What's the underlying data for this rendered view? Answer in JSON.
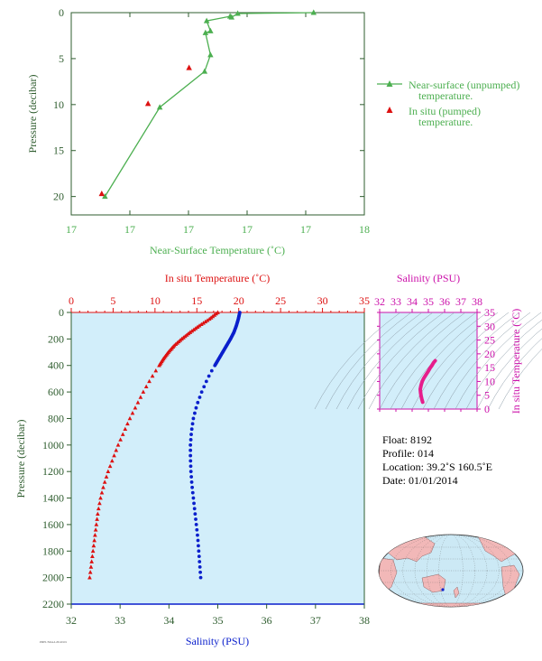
{
  "colors": {
    "green": "#4caf50",
    "axis_green": "#2f5d2f",
    "red": "#dd1111",
    "blue": "#0a1fcc",
    "magenta": "#cc11aa",
    "panel_bg": "#d2eefa",
    "land": "#f2b8b8",
    "ocean": "#cce9f5"
  },
  "chart_data": [
    {
      "type": "line",
      "xlabel": "Near-Surface Temperature (˚C)",
      "ylabel": "Pressure (decibar)",
      "xlim": [
        17,
        18
      ],
      "ylim": [
        22,
        0
      ],
      "x_tick_labels": [
        "17",
        "17",
        "17",
        "17",
        "17",
        "18"
      ],
      "y_ticks": [
        0,
        5,
        10,
        15,
        20
      ],
      "legend_position": "right",
      "series": [
        {
          "name": "Near-surface (unpumped) temperature.",
          "marker": "triangle-line",
          "x": [
            17.827,
            17.568,
            17.547,
            17.542,
            17.462,
            17.475,
            17.458,
            17.475,
            17.455,
            17.302,
            17.115
          ],
          "y": [
            0.0,
            0.1,
            0.5,
            0.4,
            0.9,
            2.0,
            2.2,
            4.6,
            6.4,
            10.3,
            20.0
          ]
        },
        {
          "name": "In situ (pumped) temperature.",
          "marker": "triangle",
          "x": [
            17.402,
            17.262,
            17.104
          ],
          "y": [
            6.0,
            9.9,
            19.7
          ]
        }
      ]
    },
    {
      "type": "scatter",
      "x_top_label": "In situ Temperature (˚C)",
      "x_bottom_label": "Salinity (PSU)",
      "ylabel": "Pressure (decibar)",
      "temp_lim": [
        0,
        35
      ],
      "temp_ticks": [
        0,
        5,
        10,
        15,
        20,
        25,
        30,
        35
      ],
      "sal_lim": [
        32,
        38
      ],
      "sal_ticks": [
        32,
        33,
        34,
        35,
        36,
        37,
        38
      ],
      "ylim": [
        2200,
        0
      ],
      "y_ticks": [
        0,
        200,
        400,
        600,
        800,
        1000,
        1200,
        1400,
        1600,
        1800,
        2000,
        2200
      ],
      "series": [
        {
          "name": "In situ Temperature (˚C)",
          "pressure": [
            0,
            50,
            100,
            150,
            200,
            250,
            300,
            350,
            400,
            500,
            600,
            700,
            800,
            900,
            1000,
            1100,
            1200,
            1300,
            1400,
            1500,
            1600,
            1700,
            1800,
            1900,
            2000
          ],
          "temperature": [
            17.5,
            16.5,
            15.3,
            14.2,
            13.2,
            12.3,
            11.6,
            11.0,
            10.5,
            9.5,
            8.6,
            7.8,
            7.0,
            6.3,
            5.6,
            5.0,
            4.4,
            3.9,
            3.5,
            3.2,
            3.0,
            2.8,
            2.6,
            2.4,
            2.2
          ]
        },
        {
          "name": "Salinity (PSU)",
          "pressure": [
            0,
            50,
            100,
            150,
            200,
            250,
            300,
            350,
            400,
            450,
            500,
            600,
            700,
            800,
            900,
            1000,
            1100,
            1200,
            1300,
            1400,
            1500,
            1600,
            1700,
            1800,
            1900,
            2000
          ],
          "salinity": [
            35.45,
            35.42,
            35.38,
            35.33,
            35.26,
            35.18,
            35.1,
            35.02,
            34.94,
            34.86,
            34.79,
            34.67,
            34.57,
            34.5,
            34.46,
            34.44,
            34.44,
            34.45,
            34.47,
            34.5,
            34.53,
            34.56,
            34.59,
            34.61,
            34.63,
            34.65
          ]
        }
      ]
    },
    {
      "type": "scatter",
      "xlabel": "Salinity (PSU)",
      "ylabel": "In situ Temperature (˚C)",
      "xlim": [
        32,
        38
      ],
      "x_ticks": [
        32,
        33,
        34,
        35,
        36,
        37,
        38
      ],
      "ylim": [
        0,
        35
      ],
      "y_ticks": [
        0,
        5,
        10,
        15,
        20,
        25,
        30,
        35
      ],
      "series": [
        {
          "name": "T-S curve",
          "salinity": [
            34.65,
            34.6,
            34.55,
            34.52,
            34.5,
            34.55,
            34.62,
            34.72,
            34.86,
            34.98,
            35.1,
            35.22,
            35.32,
            35.42
          ],
          "temperature": [
            2.5,
            3.5,
            4.8,
            6.0,
            7.2,
            8.6,
            10.0,
            11.2,
            12.5,
            13.6,
            14.8,
            15.8,
            16.8,
            17.5
          ]
        }
      ]
    }
  ],
  "info": {
    "float": "Float:  8192",
    "profile": "Profile:  014",
    "location": "Location:  39.2˚S  160.5˚E",
    "date": "Date:  01/01/2014"
  },
  "map": {
    "marker_label": "float-location"
  },
  "footer": {
    "small_text": "PMEL/NOAA 20140101"
  }
}
